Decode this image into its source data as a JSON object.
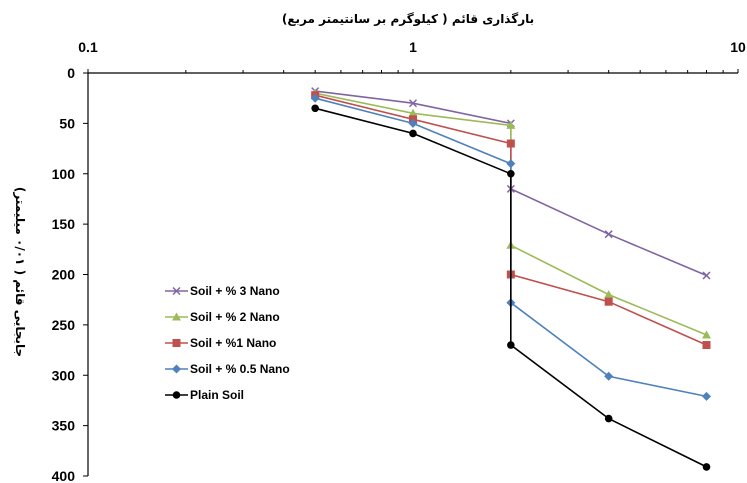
{
  "chart_data": {
    "type": "line",
    "xlabel": "بارگذاری قائم ( کیلوگرم بر سانتیمتر مربع)",
    "ylabel": "جابجایی قائم ( ۰/۰۱ میلیمتر)",
    "x_scale": "log",
    "xlim": [
      0.1,
      10
    ],
    "ylim": [
      0,
      400
    ],
    "y_reversed": true,
    "x_ticks": [
      "0.1",
      "1",
      "10"
    ],
    "y_ticks": [
      "0",
      "50",
      "100",
      "150",
      "200",
      "250",
      "300",
      "350",
      "400"
    ],
    "legend_position": "center-left",
    "grid": false,
    "series": [
      {
        "name": "Soil + % 3 Nano",
        "color": "#8064a2",
        "marker": "x",
        "points": [
          [
            0.5,
            18
          ],
          [
            1,
            30
          ],
          [
            2,
            50
          ],
          [
            2,
            115
          ],
          [
            4,
            160
          ],
          [
            8,
            201
          ]
        ]
      },
      {
        "name": "Soil + % 2 Nano",
        "color": "#9bbb59",
        "marker": "triangle",
        "points": [
          [
            0.5,
            20
          ],
          [
            1,
            40
          ],
          [
            2,
            52
          ],
          [
            2,
            171
          ],
          [
            4,
            220
          ],
          [
            8,
            260
          ]
        ]
      },
      {
        "name": "Soil + %1 Nano",
        "color": "#c0504d",
        "marker": "square",
        "points": [
          [
            0.5,
            22
          ],
          [
            1,
            46
          ],
          [
            2,
            70
          ],
          [
            2,
            200
          ],
          [
            4,
            227
          ],
          [
            8,
            270
          ]
        ]
      },
      {
        "name": "Soil + % 0.5 Nano",
        "color": "#4f81bd",
        "marker": "diamond",
        "points": [
          [
            0.5,
            25
          ],
          [
            1,
            50
          ],
          [
            2,
            90
          ],
          [
            2,
            228
          ],
          [
            4,
            301
          ],
          [
            8,
            321
          ]
        ]
      },
      {
        "name": "Plain Soil",
        "color": "#000000",
        "marker": "circle",
        "points": [
          [
            0.5,
            35
          ],
          [
            1,
            60
          ],
          [
            2,
            100
          ],
          [
            2,
            270
          ],
          [
            4,
            343
          ],
          [
            8,
            391
          ]
        ]
      }
    ]
  }
}
